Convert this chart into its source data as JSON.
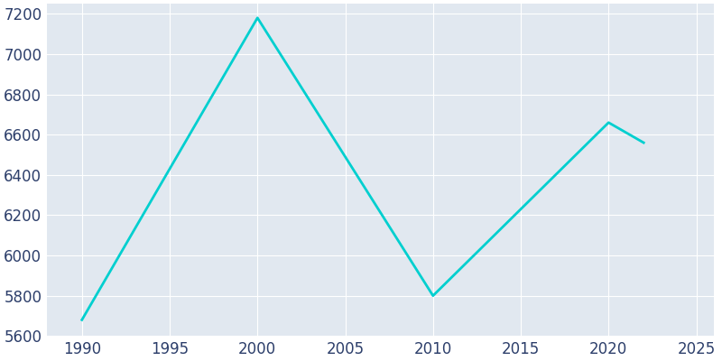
{
  "years": [
    1990,
    2000,
    2010,
    2020,
    2021,
    2022
  ],
  "population": [
    5680,
    7180,
    5800,
    6660,
    6610,
    6560
  ],
  "line_color": "#00CFCF",
  "line_width": 2.0,
  "bg_color": "#FFFFFF",
  "plot_bg_color": "#E1E8F0",
  "xlim": [
    1988,
    2026
  ],
  "ylim": [
    5600,
    7250
  ],
  "xticks": [
    1990,
    1995,
    2000,
    2005,
    2010,
    2015,
    2020,
    2025
  ],
  "yticks": [
    5600,
    5800,
    6000,
    6200,
    6400,
    6600,
    6800,
    7000,
    7200
  ],
  "grid_color": "#FFFFFF",
  "tick_label_color": "#2d3f6b",
  "tick_fontsize": 12
}
